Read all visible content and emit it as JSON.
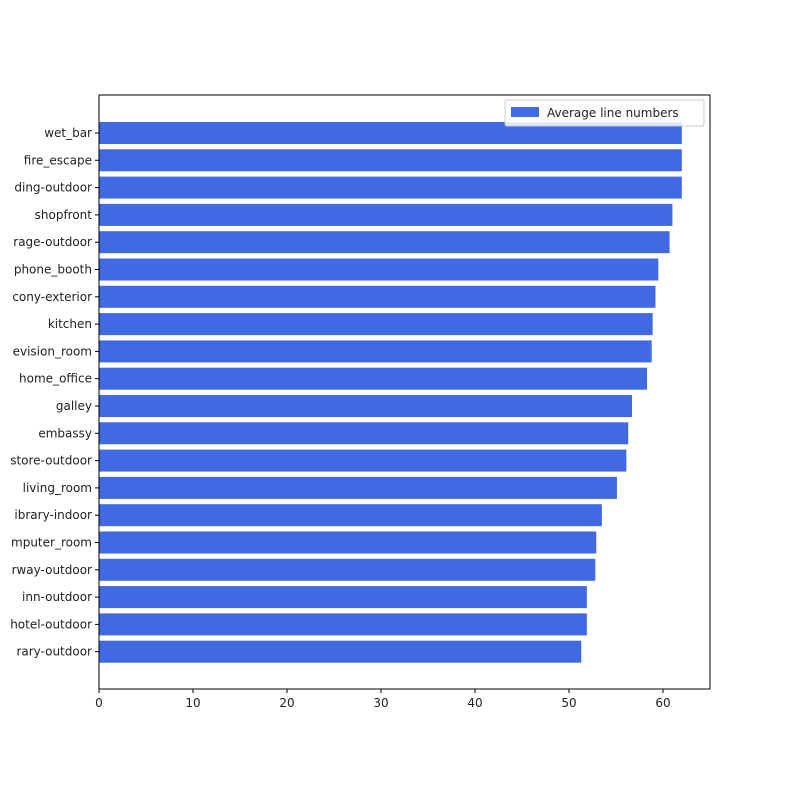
{
  "chart_data": {
    "type": "bar",
    "orientation": "horizontal",
    "categories": [
      "wet_bar",
      "fire_escape",
      "ding-outdoor",
      "shopfront",
      "rage-outdoor",
      "phone_booth",
      "cony-exterior",
      "kitchen",
      "evision_room",
      "home_office",
      "galley",
      "embassy",
      "store-outdoor",
      "living_room",
      "ibrary-indoor",
      "mputer_room",
      "rway-outdoor",
      "inn-outdoor",
      "hotel-outdoor",
      "rary-outdoor"
    ],
    "series": [
      {
        "name": "Average line numbers",
        "color": "#4169e1",
        "values": [
          62.0,
          62.0,
          62.0,
          61.0,
          60.7,
          59.5,
          59.2,
          58.9,
          58.8,
          58.3,
          56.7,
          56.3,
          56.1,
          55.1,
          53.5,
          52.9,
          52.8,
          51.9,
          51.9,
          51.3
        ]
      }
    ],
    "title": "",
    "xlabel": "",
    "ylabel": "",
    "xlim": [
      0,
      65
    ],
    "xticks": [
      "0",
      "10",
      "20",
      "30",
      "40",
      "50",
      "60"
    ],
    "grid": false,
    "legend_position": "top-right"
  }
}
